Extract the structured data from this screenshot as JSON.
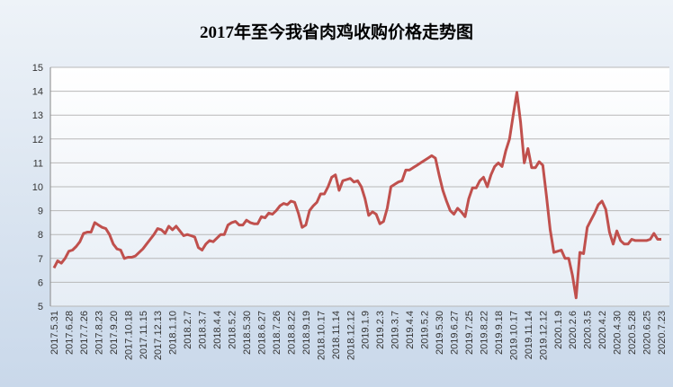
{
  "chart_data": {
    "type": "line",
    "title": "2017年至今我省肉鸡收购价格走势图",
    "categories": [
      "2017.5.31",
      null,
      null,
      null,
      "2017.6.28",
      null,
      null,
      null,
      "2017.7.26",
      null,
      null,
      null,
      "2017.8.23",
      null,
      null,
      null,
      "2017.9.20",
      null,
      null,
      null,
      "2017.10.18",
      null,
      null,
      null,
      "2017.11.15",
      null,
      null,
      null,
      "2017.12.13",
      null,
      null,
      null,
      "2018.1.10",
      null,
      null,
      null,
      "2018.2.7",
      null,
      null,
      null,
      "2018.3.7",
      null,
      null,
      null,
      "2018.4.4",
      null,
      null,
      null,
      "2018.5.2",
      null,
      null,
      null,
      "2018.5.30",
      null,
      null,
      null,
      "2018.6.27",
      null,
      null,
      null,
      "2018.7.26",
      null,
      null,
      null,
      "2018.8.22",
      null,
      null,
      null,
      "2018.9.19",
      null,
      null,
      null,
      "2018.10.17",
      null,
      null,
      null,
      "2018.11.14",
      null,
      null,
      null,
      "2018.12.12",
      null,
      null,
      null,
      "2019.1.9",
      null,
      null,
      null,
      "2019.2.3",
      null,
      null,
      null,
      "2019.3.7",
      null,
      null,
      null,
      "2019.4.4",
      null,
      null,
      null,
      "2019.5.2",
      null,
      null,
      null,
      "2019.5.30",
      null,
      null,
      null,
      "2019.6.27",
      null,
      null,
      null,
      "2019.7.25",
      null,
      null,
      null,
      "2019.8.22",
      null,
      null,
      null,
      "2019.9.18",
      null,
      null,
      null,
      "2019.10.17",
      null,
      null,
      null,
      "2019.11.14",
      null,
      null,
      null,
      "2019.12.12",
      null,
      null,
      null,
      "2020.1.9",
      null,
      null,
      null,
      "2020.2.6",
      null,
      null,
      null,
      "2020.3.5",
      null,
      null,
      null,
      "2020.4.2",
      null,
      null,
      null,
      "2020.4.30",
      null,
      null,
      null,
      "2020.5.28",
      null,
      null,
      null,
      "2020.6.25",
      null,
      null,
      null,
      "2020.7.23"
    ],
    "series": [
      {
        "color": "#c0504d",
        "values": [
          6.6,
          6.9,
          6.8,
          7.0,
          7.3,
          7.35,
          7.5,
          7.7,
          8.05,
          8.1,
          8.1,
          8.5,
          8.4,
          8.3,
          8.25,
          8.0,
          7.6,
          7.4,
          7.35,
          7.0,
          7.05,
          7.05,
          7.1,
          7.25,
          7.4,
          7.6,
          7.8,
          8.0,
          8.25,
          8.2,
          8.05,
          8.35,
          8.2,
          8.35,
          8.15,
          7.95,
          8.0,
          7.95,
          7.9,
          7.45,
          7.35,
          7.6,
          7.75,
          7.7,
          7.85,
          8.0,
          8.0,
          8.4,
          8.5,
          8.55,
          8.4,
          8.4,
          8.6,
          8.5,
          8.45,
          8.45,
          8.75,
          8.7,
          8.9,
          8.85,
          9.0,
          9.2,
          9.3,
          9.25,
          9.4,
          9.35,
          8.9,
          8.3,
          8.4,
          9.0,
          9.2,
          9.35,
          9.7,
          9.7,
          10.0,
          10.4,
          10.5,
          9.85,
          10.25,
          10.3,
          10.35,
          10.2,
          10.25,
          10.0,
          9.5,
          8.8,
          8.95,
          8.85,
          8.45,
          8.55,
          9.1,
          10.0,
          10.1,
          10.2,
          10.25,
          10.7,
          10.7,
          10.8,
          10.9,
          11.0,
          11.1,
          11.2,
          11.3,
          11.2,
          10.5,
          9.85,
          9.4,
          9.0,
          8.85,
          9.1,
          8.95,
          8.75,
          9.5,
          9.95,
          9.95,
          10.25,
          10.4,
          10.0,
          10.5,
          10.85,
          11.0,
          10.85,
          11.5,
          12.0,
          13.0,
          13.95,
          12.7,
          11.0,
          11.6,
          10.8,
          10.8,
          11.05,
          10.9,
          9.6,
          8.2,
          7.25,
          7.3,
          7.35,
          7.0,
          7.0,
          6.3,
          5.35,
          7.25,
          7.2,
          8.3,
          8.6,
          8.9,
          9.25,
          9.4,
          9.05,
          8.1,
          7.6,
          8.15,
          7.75,
          7.6,
          7.6,
          7.8,
          7.75,
          7.75,
          7.75,
          7.75,
          7.8,
          8.05,
          7.8,
          7.8
        ]
      }
    ],
    "ylim": [
      5,
      15
    ],
    "yticks": [
      5,
      6,
      7,
      8,
      9,
      10,
      11,
      12,
      13,
      14,
      15
    ],
    "grid": true
  }
}
